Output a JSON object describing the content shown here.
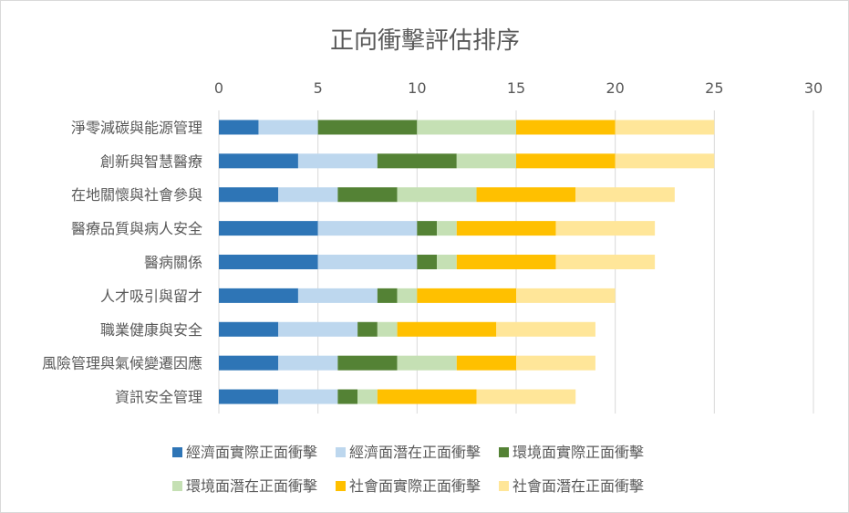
{
  "chart_data": {
    "type": "bar",
    "orientation": "horizontal",
    "stacked": true,
    "title": "正向衝擊評估排序",
    "xlabel": "",
    "ylabel": "",
    "xlim": [
      0,
      30
    ],
    "xticks": [
      0,
      5,
      10,
      15,
      20,
      25,
      30
    ],
    "grid": true,
    "legend_position": "bottom",
    "categories": [
      "淨零減碳與能源管理",
      "創新與智慧醫療",
      "在地關懷與社會參與",
      "醫療品質與病人安全",
      "醫病關係",
      "人才吸引與留才",
      "職業健康與安全",
      "風險管理與氣候變遷因應",
      "資訊安全管理"
    ],
    "series": [
      {
        "name": "經濟面實際正面衝擊",
        "color": "#2e75b6",
        "values": [
          2,
          4,
          3,
          5,
          5,
          4,
          3,
          3,
          3
        ]
      },
      {
        "name": "經濟面潛在正面衝擊",
        "color": "#bdd7ee",
        "values": [
          3,
          4,
          3,
          5,
          5,
          4,
          4,
          3,
          3
        ]
      },
      {
        "name": "環境面實際正面衝擊",
        "color": "#548235",
        "values": [
          5,
          4,
          3,
          1,
          1,
          1,
          1,
          3,
          1
        ]
      },
      {
        "name": "環境面潛在正面衝擊",
        "color": "#c5e0b4",
        "values": [
          5,
          3,
          4,
          1,
          1,
          1,
          1,
          3,
          1
        ]
      },
      {
        "name": "社會面實際正面衝擊",
        "color": "#ffc000",
        "values": [
          5,
          5,
          5,
          5,
          5,
          5,
          5,
          3,
          5
        ]
      },
      {
        "name": "社會面潛在正面衝擊",
        "color": "#ffe699",
        "values": [
          5,
          5,
          5,
          5,
          5,
          5,
          5,
          4,
          5
        ]
      }
    ]
  }
}
